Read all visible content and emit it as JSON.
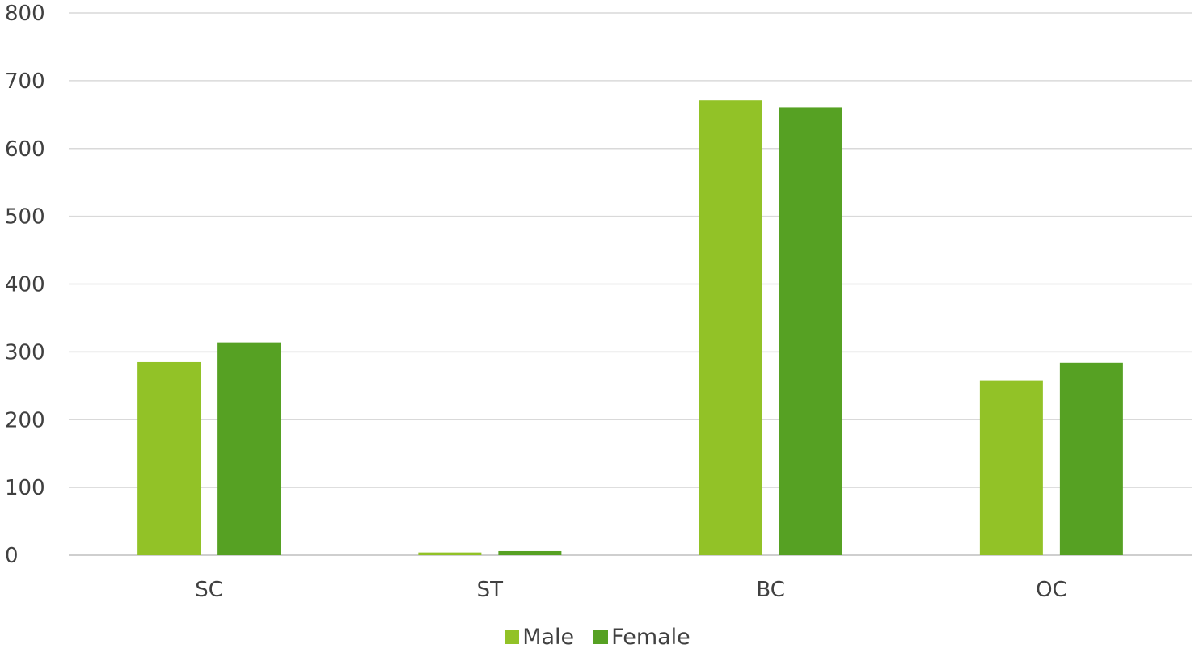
{
  "chart_data": {
    "type": "bar",
    "title": "",
    "xlabel": "",
    "ylabel": "",
    "categories": [
      "SC",
      "ST",
      "BC",
      "OC"
    ],
    "series": [
      {
        "name": "Male",
        "values": [
          285,
          4,
          671,
          258
        ],
        "color": "#92c227"
      },
      {
        "name": "Female",
        "values": [
          314,
          6,
          660,
          284
        ],
        "color": "#56a123"
      }
    ],
    "ylim": [
      0,
      800
    ],
    "yticks": [
      0,
      100,
      200,
      300,
      400,
      500,
      600,
      700,
      800
    ],
    "grid": true,
    "legend_position": "bottom"
  },
  "legend": {
    "items": [
      {
        "label": "Male",
        "color": "#92c227"
      },
      {
        "label": "Female",
        "color": "#56a123"
      }
    ]
  }
}
